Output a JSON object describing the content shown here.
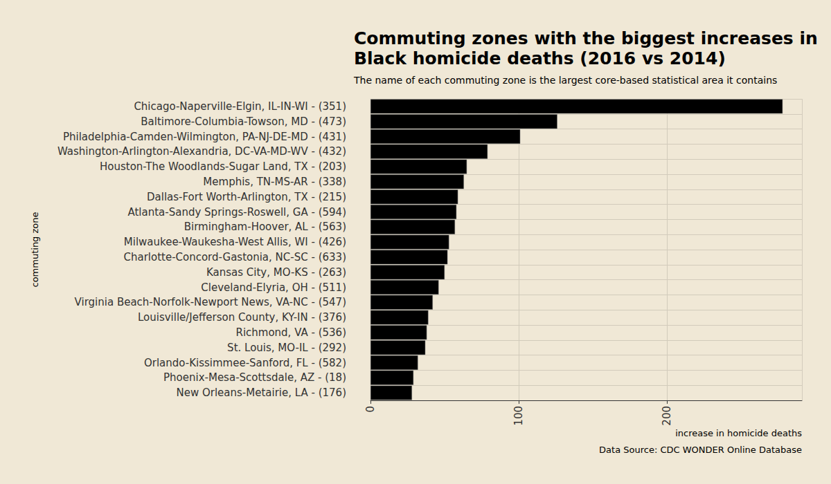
{
  "chart_data": {
    "type": "bar",
    "orientation": "horizontal",
    "title": "Commuting zones with the biggest increases in\nBlack homicide deaths (2016 vs 2014)",
    "subtitle": "The name of each commuting zone is the largest core-based statistical area it contains",
    "caption": "Data Source: CDC WONDER Online Database",
    "x_label": "increase in homicide deaths",
    "y_label": "commuting zone",
    "categories": [
      "Chicago-Naperville-Elgin, IL-IN-WI - (351)",
      "Baltimore-Columbia-Towson, MD - (473)",
      "Philadelphia-Camden-Wilmington, PA-NJ-DE-MD - (431)",
      "Washington-Arlington-Alexandria, DC-VA-MD-WV - (432)",
      "Houston-The Woodlands-Sugar Land, TX - (203)",
      "Memphis, TN-MS-AR - (338)",
      "Dallas-Fort Worth-Arlington, TX - (215)",
      "Atlanta-Sandy Springs-Roswell, GA - (594)",
      "Birmingham-Hoover, AL - (563)",
      "Milwaukee-Waukesha-West Allis, WI - (426)",
      "Charlotte-Concord-Gastonia, NC-SC - (633)",
      "Kansas City, MO-KS - (263)",
      "Cleveland-Elyria, OH - (511)",
      "Virginia Beach-Norfolk-Newport News, VA-NC - (547)",
      "Louisville/Jefferson County, KY-IN - (376)",
      "Richmond, VA - (536)",
      "St. Louis, MO-IL - (292)",
      "Orlando-Kissimmee-Sanford, FL - (582)",
      "Phoenix-Mesa-Scottsdale, AZ - (18)",
      "New Orleans-Metairie, LA - (176)"
    ],
    "values": [
      278,
      126,
      101,
      79,
      65,
      63,
      59,
      58,
      57,
      53,
      52,
      50,
      46,
      42,
      39,
      38,
      37,
      32,
      29,
      28
    ],
    "color": "#000000",
    "xlim": [
      0,
      291
    ],
    "xticks": [
      0,
      100,
      200
    ],
    "grid": true
  }
}
